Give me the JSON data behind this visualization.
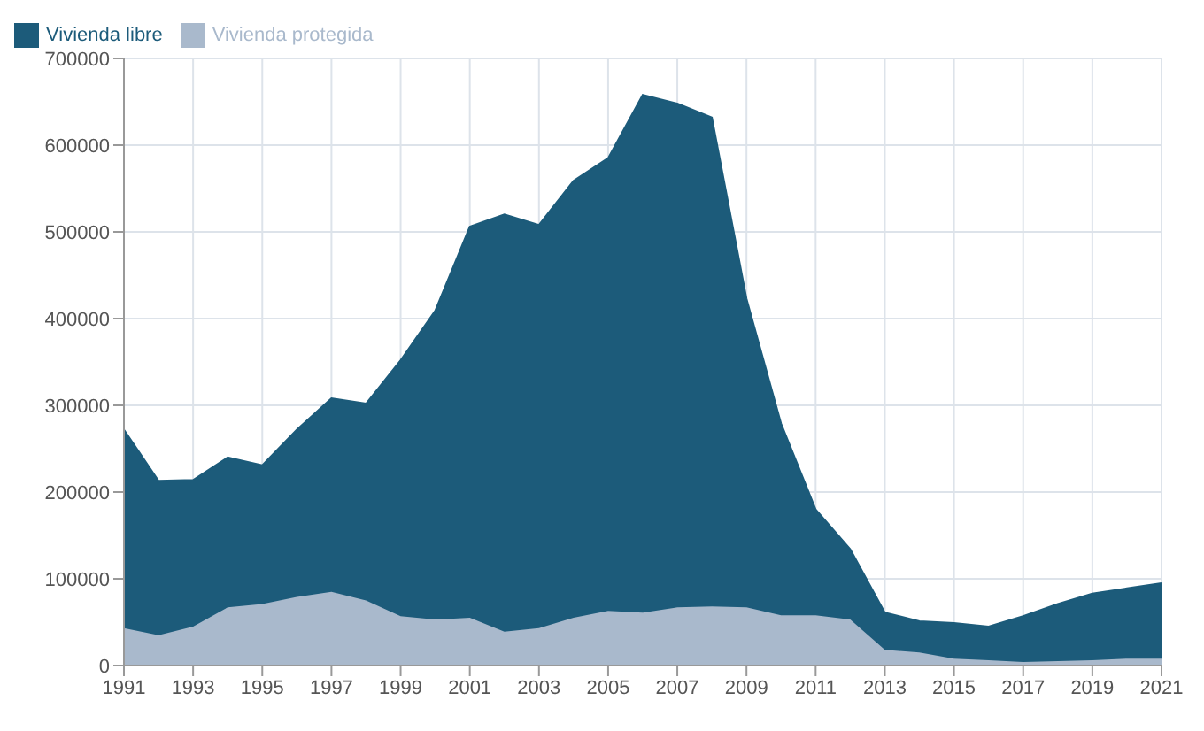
{
  "chart_data": {
    "type": "area",
    "stacked": true,
    "x": [
      1991,
      1992,
      1993,
      1994,
      1995,
      1996,
      1997,
      1998,
      1999,
      2000,
      2001,
      2002,
      2003,
      2004,
      2005,
      2006,
      2007,
      2008,
      2009,
      2010,
      2011,
      2012,
      2013,
      2014,
      2015,
      2016,
      2017,
      2018,
      2019,
      2020,
      2021
    ],
    "series": [
      {
        "name": "Vivienda protegida",
        "color": "#a9b9cc",
        "values": [
          43000,
          35000,
          45000,
          67000,
          71000,
          79000,
          85000,
          75000,
          57000,
          53000,
          55000,
          39000,
          43000,
          55000,
          63000,
          61000,
          67000,
          68000,
          67000,
          58000,
          58000,
          53000,
          18000,
          15000,
          8000,
          6000,
          4000,
          5000,
          6000,
          8000,
          8000
        ]
      },
      {
        "name": "Vivienda libre",
        "color": "#1c5b7a",
        "values": [
          229000,
          178000,
          169000,
          173000,
          160000,
          193000,
          223000,
          227000,
          295000,
          356000,
          451000,
          481000,
          465000,
          504000,
          522000,
          597000,
          581000,
          564000,
          356000,
          221000,
          122000,
          81000,
          43000,
          36000,
          41000,
          39000,
          53000,
          66000,
          77000,
          81000,
          87000
        ]
      }
    ],
    "xlim": [
      1991,
      2021
    ],
    "xticks": [
      1991,
      1993,
      1995,
      1997,
      1999,
      2001,
      2003,
      2005,
      2007,
      2009,
      2011,
      2013,
      2015,
      2017,
      2019,
      2021
    ],
    "ylim": [
      0,
      700000
    ],
    "yticks": [
      0,
      100000,
      200000,
      300000,
      400000,
      500000,
      600000,
      700000
    ],
    "grid": true,
    "legend": "top left"
  }
}
